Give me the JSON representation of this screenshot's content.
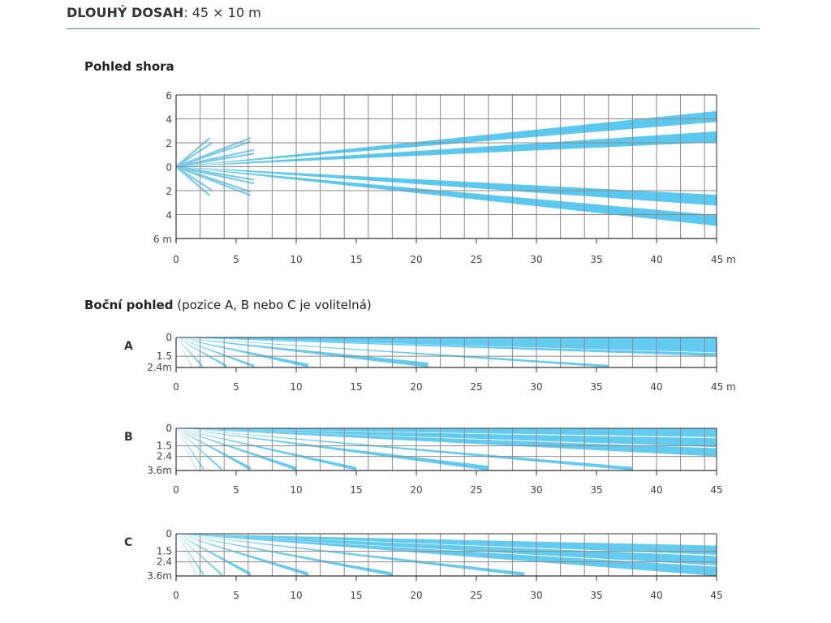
{
  "header": {
    "title_bold": "DLOUHÝ DOSAH",
    "title_rest": ": 45 × 10 m"
  },
  "top_view": {
    "title": "Pohled shora"
  },
  "side_view": {
    "title_bold": "Boční pohled",
    "title_rest": " (pozice A, B nebo C je volitelná)"
  },
  "colors": {
    "beam": "#5bc8ef",
    "beam_short": "#7ccbe8",
    "grid": "#8a8a8a",
    "axis": "#333333",
    "rule": "#5a8e9c"
  },
  "chart_data": [
    {
      "type": "diagram",
      "title": "Pohled shora",
      "xlabel": "m",
      "ylabel": "m",
      "xlim": [
        0,
        45
      ],
      "ylim": [
        -6,
        6
      ],
      "x_ticks": [
        "0",
        "5",
        "10",
        "15",
        "20",
        "25",
        "30",
        "35",
        "40",
        "45 m"
      ],
      "x_tick_values": [
        0,
        5,
        10,
        15,
        20,
        25,
        30,
        35,
        40,
        45
      ],
      "y_ticks": [
        "6",
        "4",
        "2",
        "0",
        "2",
        "4",
        "6 m"
      ],
      "y_tick_values": [
        6,
        4,
        2,
        0,
        -2,
        -4,
        -6
      ],
      "grid_step": {
        "x": 2,
        "y": 2
      },
      "long_beams": [
        {
          "end_x": 45,
          "end_y_center": 4.2,
          "end_width": 0.9
        },
        {
          "end_x": 45,
          "end_y_center": 2.5,
          "end_width": 0.9
        },
        {
          "end_x": 45,
          "end_y_center": -2.8,
          "end_width": 0.9
        },
        {
          "end_x": 45,
          "end_y_center": -4.5,
          "end_width": 0.9
        }
      ],
      "short_beams": [
        {
          "end_x": 2.8,
          "end_y": 2.4
        },
        {
          "end_x": 3.0,
          "end_y": 2.0
        },
        {
          "end_x": 6.2,
          "end_y": 2.4
        },
        {
          "end_x": 6.2,
          "end_y": 2.1
        },
        {
          "end_x": 6.5,
          "end_y": 1.4
        },
        {
          "end_x": 6.5,
          "end_y": 1.1
        },
        {
          "end_x": 6.5,
          "end_y": -1.1
        },
        {
          "end_x": 6.5,
          "end_y": -1.4
        },
        {
          "end_x": 6.2,
          "end_y": -2.1
        },
        {
          "end_x": 6.2,
          "end_y": -2.4
        },
        {
          "end_x": 3.0,
          "end_y": -2.0
        },
        {
          "end_x": 2.8,
          "end_y": -2.4
        }
      ]
    },
    {
      "type": "diagram",
      "title": "A",
      "xlim": [
        0,
        45
      ],
      "ylim": [
        0,
        2.4
      ],
      "x_ticks": [
        "0",
        "5",
        "10",
        "15",
        "20",
        "25",
        "30",
        "35",
        "40",
        "45 m"
      ],
      "x_tick_values": [
        0,
        5,
        10,
        15,
        20,
        25,
        30,
        35,
        40,
        45
      ],
      "y_ticks": [
        "0",
        "1.5",
        "2.4m"
      ],
      "y_tick_values": [
        0,
        1.5,
        2.4
      ],
      "beams": [
        {
          "end_x": 45,
          "y_top": 0.0,
          "y_bottom": 1.2
        },
        {
          "end_x": 45,
          "y_top": 1.25,
          "y_bottom": 1.5
        },
        {
          "end_x": 36,
          "y_top": 2.2,
          "y_bottom": 2.4
        },
        {
          "end_x": 21,
          "y_top": 2.0,
          "y_bottom": 2.4
        },
        {
          "end_x": 11,
          "y_top": 2.1,
          "y_bottom": 2.4
        },
        {
          "end_x": 6.5,
          "y_top": 2.2,
          "y_bottom": 2.4
        },
        {
          "end_x": 4.2,
          "y_top": 2.2,
          "y_bottom": 2.4
        },
        {
          "end_x": 2.2,
          "y_top": 2.2,
          "y_bottom": 2.4
        },
        {
          "end_x": 1.3,
          "y_top": 2.3,
          "y_bottom": 2.4
        }
      ]
    },
    {
      "type": "diagram",
      "title": "B",
      "xlim": [
        0,
        45
      ],
      "ylim": [
        0,
        3.6
      ],
      "x_ticks": [
        "0",
        "5",
        "10",
        "15",
        "20",
        "25",
        "30",
        "35",
        "40",
        "45"
      ],
      "x_tick_values": [
        0,
        5,
        10,
        15,
        20,
        25,
        30,
        35,
        40,
        45
      ],
      "y_ticks": [
        "0",
        "1.5",
        "2.4",
        "3.6m"
      ],
      "y_tick_values": [
        0,
        1.5,
        2.4,
        3.6
      ],
      "beams": [
        {
          "end_x": 45,
          "y_top": 0.0,
          "y_bottom": 0.75
        },
        {
          "end_x": 45,
          "y_top": 0.85,
          "y_bottom": 1.6
        },
        {
          "end_x": 45,
          "y_top": 1.7,
          "y_bottom": 2.4
        },
        {
          "end_x": 38,
          "y_top": 3.3,
          "y_bottom": 3.6
        },
        {
          "end_x": 26,
          "y_top": 3.2,
          "y_bottom": 3.6
        },
        {
          "end_x": 15,
          "y_top": 3.3,
          "y_bottom": 3.6
        },
        {
          "end_x": 10,
          "y_top": 3.3,
          "y_bottom": 3.6
        },
        {
          "end_x": 6.2,
          "y_top": 3.3,
          "y_bottom": 3.6
        },
        {
          "end_x": 3.8,
          "y_top": 3.4,
          "y_bottom": 3.6
        },
        {
          "end_x": 2.3,
          "y_top": 3.4,
          "y_bottom": 3.6
        },
        {
          "end_x": 1.7,
          "y_top": 3.5,
          "y_bottom": 3.6
        }
      ]
    },
    {
      "type": "diagram",
      "title": "C",
      "xlim": [
        0,
        45
      ],
      "ylim": [
        0,
        3.6
      ],
      "x_ticks": [
        "0",
        "5",
        "10",
        "15",
        "20",
        "25",
        "30",
        "35",
        "40",
        "45"
      ],
      "x_tick_values": [
        0,
        5,
        10,
        15,
        20,
        25,
        30,
        35,
        40,
        45
      ],
      "y_ticks": [
        "0",
        "1.5",
        "2.4",
        "3.6m"
      ],
      "y_tick_values": [
        0,
        1.5,
        2.4,
        3.6
      ],
      "beams": [
        {
          "end_x": 45,
          "y_top": 1.0,
          "y_bottom": 1.8
        },
        {
          "end_x": 45,
          "y_top": 1.9,
          "y_bottom": 2.7
        },
        {
          "end_x": 45,
          "y_top": 2.8,
          "y_bottom": 3.6
        },
        {
          "end_x": 29,
          "y_top": 3.3,
          "y_bottom": 3.6
        },
        {
          "end_x": 18,
          "y_top": 3.3,
          "y_bottom": 3.6
        },
        {
          "end_x": 11,
          "y_top": 3.3,
          "y_bottom": 3.6
        },
        {
          "end_x": 6.2,
          "y_top": 3.3,
          "y_bottom": 3.6
        },
        {
          "end_x": 3.8,
          "y_top": 3.4,
          "y_bottom": 3.6
        },
        {
          "end_x": 2.3,
          "y_top": 3.4,
          "y_bottom": 3.6
        },
        {
          "end_x": 1.7,
          "y_top": 3.5,
          "y_bottom": 3.6
        }
      ]
    }
  ]
}
